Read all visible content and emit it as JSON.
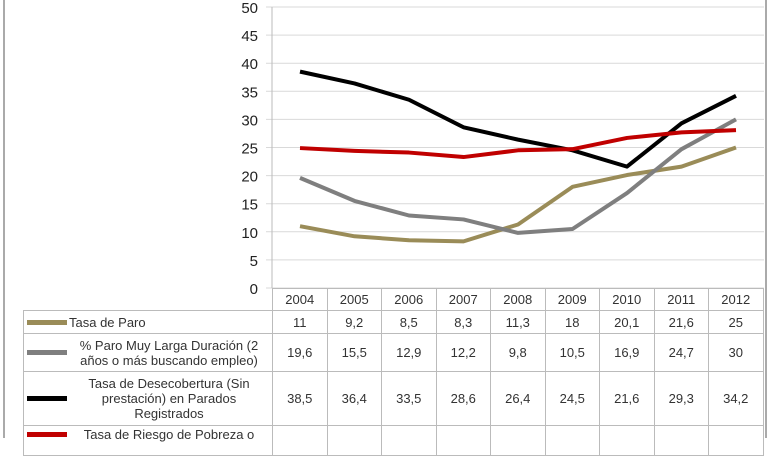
{
  "chart_data": {
    "type": "line",
    "title": "",
    "categories": [
      "2004",
      "2005",
      "2006",
      "2007",
      "2008",
      "2009",
      "2010",
      "2011",
      "2012"
    ],
    "ylim": [
      0,
      50
    ],
    "yticks": [
      0,
      5,
      10,
      15,
      20,
      25,
      30,
      35,
      40,
      45,
      50
    ],
    "grid": true,
    "legend": "data-table-below",
    "series": [
      {
        "name": "Tasa de Paro",
        "color": "#9a8c58",
        "values": [
          11,
          9.2,
          8.5,
          8.3,
          11.3,
          18,
          20.1,
          21.6,
          25
        ],
        "labels": [
          "11",
          "9,2",
          "8,5",
          "8,3",
          "11,3",
          "18",
          "20,1",
          "21,6",
          "25"
        ]
      },
      {
        "name": "% Paro Muy Larga Duración (2 años o más buscando empleo)",
        "color": "#7f7f7f",
        "values": [
          19.6,
          15.5,
          12.9,
          12.2,
          9.8,
          10.5,
          16.9,
          24.7,
          30
        ],
        "labels": [
          "19,6",
          "15,5",
          "12,9",
          "12,2",
          "9,8",
          "10,5",
          "16,9",
          "24,7",
          "30"
        ]
      },
      {
        "name": "Tasa de Desecobertura (Sin prestación) en Parados Registrados",
        "color": "#000000",
        "values": [
          38.5,
          36.4,
          33.5,
          28.6,
          26.4,
          24.5,
          21.6,
          29.3,
          34.2
        ],
        "labels": [
          "38,5",
          "36,4",
          "33,5",
          "28,6",
          "26,4",
          "24,5",
          "21,6",
          "29,3",
          "34,2"
        ]
      },
      {
        "name": "Tasa de Riesgo de Pobreza o",
        "color": "#c00000",
        "values": [
          24.9,
          24.4,
          24.1,
          23.3,
          24.5,
          24.7,
          26.7,
          27.7,
          28.1
        ],
        "labels": []
      }
    ]
  }
}
